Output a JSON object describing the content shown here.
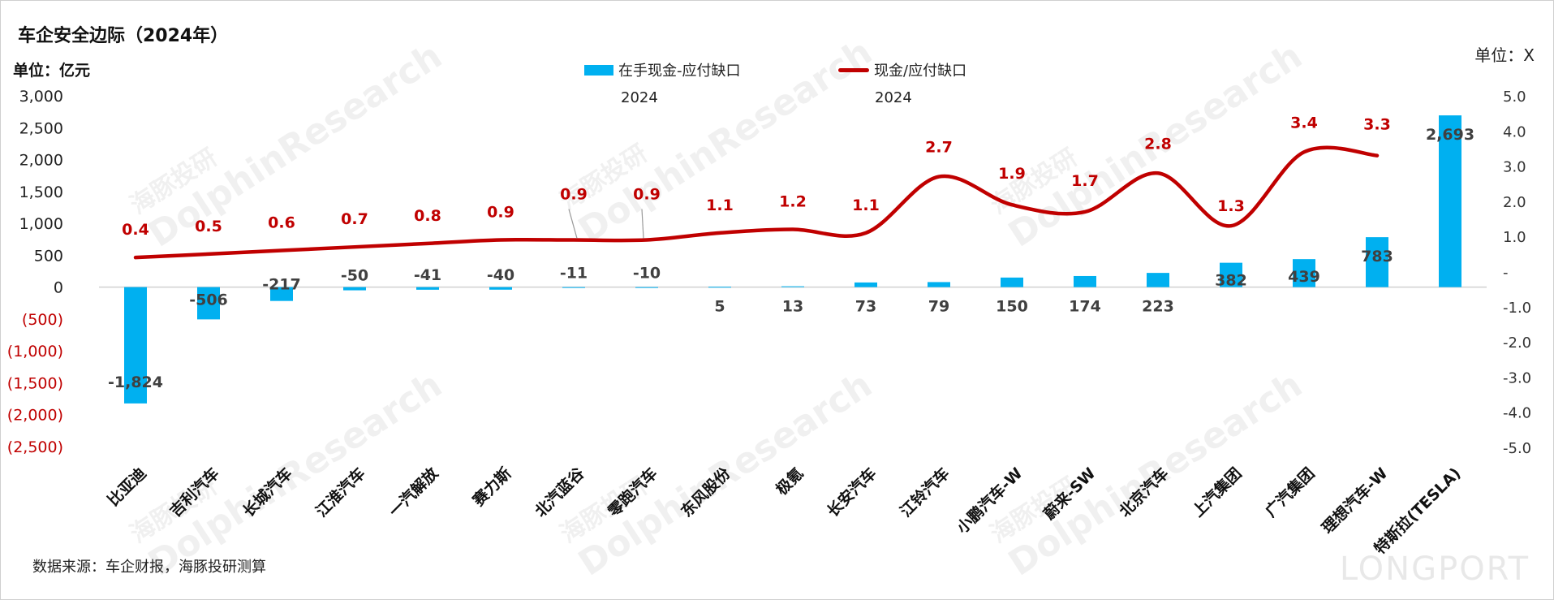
{
  "title": "车企安全边际（2024年）",
  "unit_left": "单位：亿元",
  "unit_right": "单位：X",
  "source": "数据来源：车企财报，海豚投研测算",
  "watermark": {
    "cn": "海豚投研",
    "en": "DolphinResearch",
    "logo": "LONGPORT"
  },
  "legend": {
    "bar_label": "在手现金-应付缺口",
    "bar_year": "2024",
    "line_label": "现金/应付缺口",
    "line_year": "2024"
  },
  "colors": {
    "bar": "#00b0f0",
    "line": "#c00000",
    "negative_tick": "#c00000"
  },
  "chart_data": {
    "type": "bar+line",
    "categories": [
      "比亚迪",
      "吉利汽车",
      "长城汽车",
      "江淮汽车",
      "一汽解放",
      "赛力斯",
      "北汽蓝谷",
      "零跑汽车",
      "东风股份",
      "极氪",
      "长安汽车",
      "江铃汽车",
      "小鹏汽车-W",
      "蔚来-SW",
      "北京汽车",
      "上汽集团",
      "广汽集团",
      "理想汽车-W",
      "特斯拉(TESLA)"
    ],
    "bar_series": {
      "name": "在手现金-应付缺口 2024",
      "values": [
        -1824,
        -506,
        -217,
        -50,
        -41,
        -40,
        -11,
        -10,
        5,
        13,
        73,
        79,
        150,
        174,
        223,
        382,
        439,
        783,
        2693
      ],
      "labels": [
        "-1,824",
        "-506",
        "-217",
        "-50",
        "-41",
        "-40",
        "-11",
        "-10",
        "5",
        "13",
        "73",
        "79",
        "150",
        "174",
        "223",
        "382",
        "439",
        "783",
        "2,693"
      ]
    },
    "line_series": {
      "name": "现金/应付缺口 2024",
      "values": [
        0.4,
        0.5,
        0.6,
        0.7,
        0.8,
        0.9,
        0.9,
        0.9,
        1.1,
        1.2,
        1.1,
        2.7,
        1.9,
        1.7,
        2.8,
        1.3,
        3.4,
        3.3,
        null
      ],
      "labels": [
        "0.4",
        "0.5",
        "0.6",
        "0.7",
        "0.8",
        "0.9",
        "0.9",
        "0.9",
        "1.1",
        "1.2",
        "1.1",
        "2.7",
        "1.9",
        "1.7",
        "2.8",
        "1.3",
        "3.4",
        "3.3",
        ""
      ]
    },
    "y_left": {
      "range": [
        -2500,
        3000
      ],
      "ticks": [
        3000,
        2500,
        2000,
        1500,
        1000,
        500,
        0,
        -500,
        -1000,
        -1500,
        -2000,
        -2500
      ],
      "tick_labels": [
        "3,000",
        "2,500",
        "2,000",
        "1,500",
        "1,000",
        "500",
        "0",
        "(500)",
        "(1,000)",
        "(1,500)",
        "(2,000)",
        "(2,500)"
      ]
    },
    "y_right": {
      "range": [
        -5.0,
        5.0
      ],
      "ticks": [
        5,
        4,
        3,
        2,
        1,
        0,
        -1,
        -2,
        -3,
        -4,
        -5
      ],
      "tick_labels": [
        "5.0",
        "4.0",
        "3.0",
        "2.0",
        "1.0",
        "-",
        "-1.0",
        "-2.0",
        "-3.0",
        "-4.0",
        "-5.0"
      ]
    }
  }
}
